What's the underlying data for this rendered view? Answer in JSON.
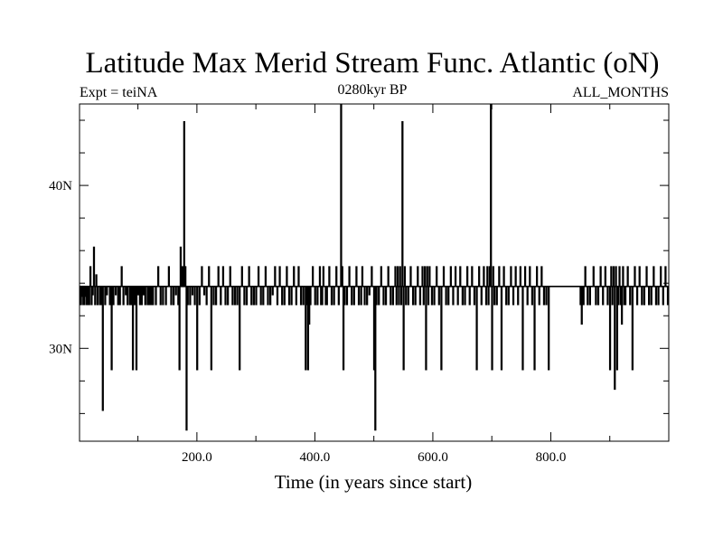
{
  "chart_data": {
    "type": "line",
    "title": "Latitude Max Merid Stream Func. Atlantic (oN)",
    "subtitle_left": "Expt = teiNA",
    "subtitle_center": "0280kyr BP",
    "subtitle_right": "ALL_MONTHS",
    "xlabel": "Time (in years since start)",
    "ylabel": "",
    "xlim": [
      1,
      1000
    ],
    "ylim": [
      24.3,
      45
    ],
    "x_tick_values": [
      200,
      400,
      600,
      800
    ],
    "x_tick_labels": [
      "200.0",
      "400.0",
      "600.0",
      "800.0"
    ],
    "y_tick_values": [
      30,
      40
    ],
    "y_tick_labels": [
      "30N",
      "40N"
    ],
    "grid": false,
    "colors": {
      "line": "#000000",
      "axes": "#000000",
      "background": "#ffffff"
    },
    "baseline": 33.8,
    "series": [
      {
        "x_start": 1,
        "x_step": 1,
        "baseline": 33.8,
        "spikes": [
          [
            3,
            32.7
          ],
          [
            5,
            33.2
          ],
          [
            7,
            32.7
          ],
          [
            9,
            32.7
          ],
          [
            11,
            33.2
          ],
          [
            13,
            32.7
          ],
          [
            15,
            32.7
          ],
          [
            17,
            32.7
          ],
          [
            19,
            35.0
          ],
          [
            21,
            32.7
          ],
          [
            23,
            33.3
          ],
          [
            25,
            36.2
          ],
          [
            27,
            32.7
          ],
          [
            29,
            34.5
          ],
          [
            31,
            32.7
          ],
          [
            35,
            32.7
          ],
          [
            38,
            32.7
          ],
          [
            40,
            26.2
          ],
          [
            44,
            32.7
          ],
          [
            47,
            33.3
          ],
          [
            52,
            32.7
          ],
          [
            55,
            28.7
          ],
          [
            58,
            32.7
          ],
          [
            62,
            33.3
          ],
          [
            66,
            32.7
          ],
          [
            69,
            32.7
          ],
          [
            72,
            35.0
          ],
          [
            75,
            32.7
          ],
          [
            79,
            33.3
          ],
          [
            82,
            32.7
          ],
          [
            86,
            32.7
          ],
          [
            89,
            32.7
          ],
          [
            91,
            28.7
          ],
          [
            94,
            32.7
          ],
          [
            97,
            28.7
          ],
          [
            100,
            33.3
          ],
          [
            103,
            32.7
          ],
          [
            106,
            32.7
          ],
          [
            109,
            33.3
          ],
          [
            112,
            32.7
          ],
          [
            116,
            32.7
          ],
          [
            119,
            32.7
          ],
          [
            122,
            32.7
          ],
          [
            125,
            32.7
          ],
          [
            130,
            32.7
          ],
          [
            134,
            35.0
          ],
          [
            138,
            32.7
          ],
          [
            142,
            32.7
          ],
          [
            147,
            32.7
          ],
          [
            152,
            35.0
          ],
          [
            156,
            32.7
          ],
          [
            160,
            32.7
          ],
          [
            164,
            33.3
          ],
          [
            168,
            32.7
          ],
          [
            170,
            28.7
          ],
          [
            172,
            36.2
          ],
          [
            175,
            35.0
          ],
          [
            178,
            43.9
          ],
          [
            180,
            35.0
          ],
          [
            182,
            25.0
          ],
          [
            184,
            32.7
          ],
          [
            188,
            32.7
          ],
          [
            192,
            33.3
          ],
          [
            196,
            32.7
          ],
          [
            200,
            28.7
          ],
          [
            204,
            32.7
          ],
          [
            208,
            35.0
          ],
          [
            212,
            33.3
          ],
          [
            216,
            32.7
          ],
          [
            220,
            35.0
          ],
          [
            224,
            28.7
          ],
          [
            228,
            32.7
          ],
          [
            232,
            32.7
          ],
          [
            236,
            35.0
          ],
          [
            240,
            32.7
          ],
          [
            244,
            35.0
          ],
          [
            248,
            32.7
          ],
          [
            252,
            32.7
          ],
          [
            256,
            35.0
          ],
          [
            260,
            32.7
          ],
          [
            264,
            32.7
          ],
          [
            268,
            32.7
          ],
          [
            272,
            28.7
          ],
          [
            276,
            35.0
          ],
          [
            280,
            32.7
          ],
          [
            284,
            32.7
          ],
          [
            288,
            35.0
          ],
          [
            292,
            32.7
          ],
          [
            296,
            32.7
          ],
          [
            300,
            32.7
          ],
          [
            304,
            35.0
          ],
          [
            308,
            32.7
          ],
          [
            312,
            32.7
          ],
          [
            316,
            35.0
          ],
          [
            320,
            32.7
          ],
          [
            324,
            32.7
          ],
          [
            328,
            33.3
          ],
          [
            332,
            35.0
          ],
          [
            336,
            32.7
          ],
          [
            340,
            35.0
          ],
          [
            344,
            32.7
          ],
          [
            348,
            32.7
          ],
          [
            352,
            35.0
          ],
          [
            356,
            32.7
          ],
          [
            360,
            32.7
          ],
          [
            364,
            35.0
          ],
          [
            368,
            32.7
          ],
          [
            372,
            35.0
          ],
          [
            376,
            32.7
          ],
          [
            380,
            32.7
          ],
          [
            384,
            28.7
          ],
          [
            386,
            32.7
          ],
          [
            388,
            28.7
          ],
          [
            390,
            31.5
          ],
          [
            392,
            32.7
          ],
          [
            396,
            35.0
          ],
          [
            400,
            32.7
          ],
          [
            404,
            32.7
          ],
          [
            408,
            35.0
          ],
          [
            410,
            32.7
          ],
          [
            412,
            32.7
          ],
          [
            414,
            35.0
          ],
          [
            418,
            32.7
          ],
          [
            420,
            32.7
          ],
          [
            424,
            35.0
          ],
          [
            428,
            32.7
          ],
          [
            432,
            32.7
          ],
          [
            436,
            35.0
          ],
          [
            440,
            32.7
          ],
          [
            444,
            45.0
          ],
          [
            446,
            35.0
          ],
          [
            448,
            28.7
          ],
          [
            450,
            32.7
          ],
          [
            454,
            32.7
          ],
          [
            458,
            35.0
          ],
          [
            462,
            32.7
          ],
          [
            466,
            32.7
          ],
          [
            470,
            35.0
          ],
          [
            474,
            32.7
          ],
          [
            478,
            32.7
          ],
          [
            480,
            35.0
          ],
          [
            484,
            32.7
          ],
          [
            488,
            32.7
          ],
          [
            492,
            33.3
          ],
          [
            496,
            35.0
          ],
          [
            500,
            28.7
          ],
          [
            502,
            25.0
          ],
          [
            504,
            32.7
          ],
          [
            508,
            32.7
          ],
          [
            512,
            35.0
          ],
          [
            516,
            32.7
          ],
          [
            520,
            32.7
          ],
          [
            524,
            35.0
          ],
          [
            528,
            32.7
          ],
          [
            532,
            32.7
          ],
          [
            536,
            35.0
          ],
          [
            538,
            32.7
          ],
          [
            540,
            35.0
          ],
          [
            542,
            32.7
          ],
          [
            544,
            35.0
          ],
          [
            546,
            32.7
          ],
          [
            548,
            43.9
          ],
          [
            550,
            28.7
          ],
          [
            552,
            35.0
          ],
          [
            554,
            32.7
          ],
          [
            558,
            32.7
          ],
          [
            562,
            35.0
          ],
          [
            566,
            32.7
          ],
          [
            570,
            32.7
          ],
          [
            574,
            35.0
          ],
          [
            578,
            32.7
          ],
          [
            582,
            35.0
          ],
          [
            584,
            32.7
          ],
          [
            586,
            35.0
          ],
          [
            588,
            28.7
          ],
          [
            590,
            35.0
          ],
          [
            592,
            32.7
          ],
          [
            594,
            35.0
          ],
          [
            598,
            32.7
          ],
          [
            602,
            32.7
          ],
          [
            606,
            35.0
          ],
          [
            610,
            32.7
          ],
          [
            614,
            28.7
          ],
          [
            618,
            35.0
          ],
          [
            622,
            32.7
          ],
          [
            626,
            32.7
          ],
          [
            630,
            35.0
          ],
          [
            634,
            32.7
          ],
          [
            638,
            35.0
          ],
          [
            642,
            32.7
          ],
          [
            646,
            35.0
          ],
          [
            650,
            32.7
          ],
          [
            654,
            32.7
          ],
          [
            658,
            35.0
          ],
          [
            662,
            32.7
          ],
          [
            666,
            35.0
          ],
          [
            670,
            32.7
          ],
          [
            674,
            28.7
          ],
          [
            678,
            35.0
          ],
          [
            682,
            32.7
          ],
          [
            686,
            35.0
          ],
          [
            690,
            32.7
          ],
          [
            692,
            35.0
          ],
          [
            694,
            32.7
          ],
          [
            696,
            35.0
          ],
          [
            698,
            45.0
          ],
          [
            700,
            28.7
          ],
          [
            702,
            35.0
          ],
          [
            704,
            32.7
          ],
          [
            708,
            32.7
          ],
          [
            712,
            35.0
          ],
          [
            716,
            28.7
          ],
          [
            720,
            35.0
          ],
          [
            724,
            32.7
          ],
          [
            728,
            32.7
          ],
          [
            732,
            35.0
          ],
          [
            736,
            32.7
          ],
          [
            740,
            35.0
          ],
          [
            744,
            32.7
          ],
          [
            748,
            35.0
          ],
          [
            752,
            28.7
          ],
          [
            756,
            35.0
          ],
          [
            760,
            32.7
          ],
          [
            764,
            35.0
          ],
          [
            768,
            32.7
          ],
          [
            772,
            28.7
          ],
          [
            776,
            35.0
          ],
          [
            780,
            32.7
          ],
          [
            784,
            35.0
          ],
          [
            788,
            32.7
          ],
          [
            792,
            32.7
          ],
          [
            796,
            28.7
          ],
          [
            850,
            32.7
          ],
          [
            852,
            31.5
          ],
          [
            855,
            32.7
          ],
          [
            858,
            35.0
          ],
          [
            862,
            32.7
          ],
          [
            866,
            32.7
          ],
          [
            872,
            35.0
          ],
          [
            876,
            32.7
          ],
          [
            880,
            32.7
          ],
          [
            884,
            35.0
          ],
          [
            888,
            32.7
          ],
          [
            892,
            35.0
          ],
          [
            896,
            32.7
          ],
          [
            900,
            28.7
          ],
          [
            902,
            35.0
          ],
          [
            904,
            32.7
          ],
          [
            906,
            35.0
          ],
          [
            908,
            27.5
          ],
          [
            910,
            35.0
          ],
          [
            912,
            28.7
          ],
          [
            914,
            32.7
          ],
          [
            916,
            35.0
          ],
          [
            918,
            32.7
          ],
          [
            920,
            31.5
          ],
          [
            922,
            35.0
          ],
          [
            924,
            32.7
          ],
          [
            926,
            32.7
          ],
          [
            930,
            35.0
          ],
          [
            934,
            32.7
          ],
          [
            938,
            28.7
          ],
          [
            942,
            35.0
          ],
          [
            946,
            32.7
          ],
          [
            950,
            35.0
          ],
          [
            954,
            32.7
          ],
          [
            958,
            32.7
          ],
          [
            962,
            35.0
          ],
          [
            966,
            32.7
          ],
          [
            970,
            32.7
          ],
          [
            974,
            35.0
          ],
          [
            978,
            32.7
          ],
          [
            982,
            32.7
          ],
          [
            986,
            35.0
          ],
          [
            990,
            32.7
          ],
          [
            994,
            35.0
          ],
          [
            998,
            32.7
          ]
        ]
      }
    ]
  }
}
